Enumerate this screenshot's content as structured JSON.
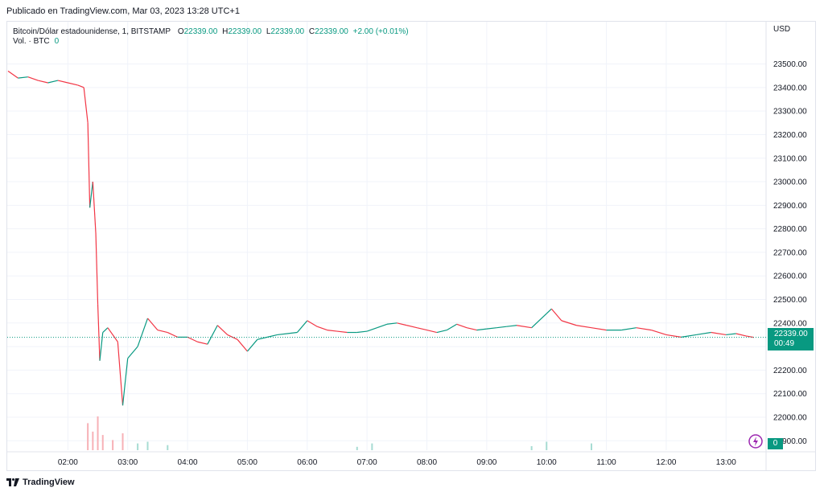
{
  "header": {
    "published": "Publicado en TradingView.com, Mar 03, 2023 13:28 UTC+1"
  },
  "legend": {
    "symbol": "Bitcoin/Dólar estadounidense, 1, BITSTAMP",
    "o_label": "O",
    "o_value": "22339.00",
    "h_label": "H",
    "h_value": "22339.00",
    "l_label": "L",
    "l_value": "22339.00",
    "c_label": "C",
    "c_value": "22339.00",
    "change": "+2.00 (+0.01%)",
    "volume_label": "Vol. · BTC",
    "volume_value": "0"
  },
  "price_axis": {
    "currency": "USD"
  },
  "last_price": {
    "price": "22339.00",
    "countdown": "00:49"
  },
  "volume_tag": "0",
  "footer": {
    "brand": "TradingView"
  },
  "colors": {
    "up": "#089981",
    "down": "#f23645",
    "grid": "#f0f3fa",
    "last_line": "#089981",
    "volume_up": "#a7dcd3",
    "volume_down": "#f7b1b6",
    "bolt": "#9c27b0"
  },
  "chart_data": {
    "type": "line",
    "title": "Bitcoin/Dólar estadounidense, 1, BITSTAMP",
    "xlabel": "",
    "ylabel": "USD",
    "x_ticks": [
      "02:00",
      "03:00",
      "04:00",
      "05:00",
      "06:00",
      "07:00",
      "08:00",
      "09:00",
      "10:00",
      "11:00",
      "12:00",
      "13:00"
    ],
    "y_ticks": [
      "21900.00",
      "22000.00",
      "22100.00",
      "22200.00",
      "22300.00",
      "22400.00",
      "22500.00",
      "22600.00",
      "22700.00",
      "22800.00",
      "22900.00",
      "23000.00",
      "23100.00",
      "23200.00",
      "23300.00",
      "23400.00",
      "23500.00"
    ],
    "xlim": [
      "01:00",
      "13:28"
    ],
    "ylim": [
      21860,
      23560
    ],
    "last_price": 22339,
    "series": [
      {
        "values": [
          {
            "t": "01:00",
            "p": 23470
          },
          {
            "t": "01:10",
            "p": 23440
          },
          {
            "t": "01:20",
            "p": 23445
          },
          {
            "t": "01:30",
            "p": 23430
          },
          {
            "t": "01:40",
            "p": 23420
          },
          {
            "t": "01:50",
            "p": 23430
          },
          {
            "t": "02:00",
            "p": 23420
          },
          {
            "t": "02:10",
            "p": 23410
          },
          {
            "t": "02:16",
            "p": 23400
          },
          {
            "t": "02:20",
            "p": 23250
          },
          {
            "t": "02:22",
            "p": 22890
          },
          {
            "t": "02:25",
            "p": 23000
          },
          {
            "t": "02:28",
            "p": 22780
          },
          {
            "t": "02:30",
            "p": 22480
          },
          {
            "t": "02:32",
            "p": 22240
          },
          {
            "t": "02:35",
            "p": 22360
          },
          {
            "t": "02:40",
            "p": 22380
          },
          {
            "t": "02:50",
            "p": 22320
          },
          {
            "t": "02:55",
            "p": 22050
          },
          {
            "t": "03:00",
            "p": 22250
          },
          {
            "t": "03:10",
            "p": 22300
          },
          {
            "t": "03:20",
            "p": 22420
          },
          {
            "t": "03:30",
            "p": 22370
          },
          {
            "t": "03:40",
            "p": 22360
          },
          {
            "t": "03:50",
            "p": 22340
          },
          {
            "t": "04:00",
            "p": 22340
          },
          {
            "t": "04:10",
            "p": 22320
          },
          {
            "t": "04:20",
            "p": 22310
          },
          {
            "t": "04:30",
            "p": 22390
          },
          {
            "t": "04:40",
            "p": 22350
          },
          {
            "t": "04:50",
            "p": 22330
          },
          {
            "t": "05:00",
            "p": 22280
          },
          {
            "t": "05:10",
            "p": 22330
          },
          {
            "t": "05:20",
            "p": 22340
          },
          {
            "t": "05:30",
            "p": 22350
          },
          {
            "t": "05:40",
            "p": 22355
          },
          {
            "t": "05:50",
            "p": 22360
          },
          {
            "t": "06:00",
            "p": 22410
          },
          {
            "t": "06:10",
            "p": 22385
          },
          {
            "t": "06:20",
            "p": 22370
          },
          {
            "t": "06:30",
            "p": 22365
          },
          {
            "t": "06:40",
            "p": 22360
          },
          {
            "t": "06:50",
            "p": 22360
          },
          {
            "t": "07:00",
            "p": 22365
          },
          {
            "t": "07:10",
            "p": 22380
          },
          {
            "t": "07:20",
            "p": 22395
          },
          {
            "t": "07:30",
            "p": 22400
          },
          {
            "t": "07:40",
            "p": 22390
          },
          {
            "t": "07:50",
            "p": 22380
          },
          {
            "t": "08:00",
            "p": 22370
          },
          {
            "t": "08:10",
            "p": 22360
          },
          {
            "t": "08:20",
            "p": 22370
          },
          {
            "t": "08:30",
            "p": 22395
          },
          {
            "t": "08:40",
            "p": 22380
          },
          {
            "t": "08:50",
            "p": 22370
          },
          {
            "t": "09:00",
            "p": 22375
          },
          {
            "t": "09:10",
            "p": 22380
          },
          {
            "t": "09:20",
            "p": 22385
          },
          {
            "t": "09:30",
            "p": 22390
          },
          {
            "t": "09:45",
            "p": 22380
          },
          {
            "t": "10:00",
            "p": 22440
          },
          {
            "t": "10:05",
            "p": 22460
          },
          {
            "t": "10:15",
            "p": 22410
          },
          {
            "t": "10:30",
            "p": 22390
          },
          {
            "t": "10:45",
            "p": 22380
          },
          {
            "t": "11:00",
            "p": 22370
          },
          {
            "t": "11:15",
            "p": 22370
          },
          {
            "t": "11:30",
            "p": 22380
          },
          {
            "t": "11:45",
            "p": 22370
          },
          {
            "t": "12:00",
            "p": 22350
          },
          {
            "t": "12:15",
            "p": 22340
          },
          {
            "t": "12:30",
            "p": 22350
          },
          {
            "t": "12:45",
            "p": 22360
          },
          {
            "t": "13:00",
            "p": 22350
          },
          {
            "t": "13:10",
            "p": 22355
          },
          {
            "t": "13:20",
            "p": 22345
          },
          {
            "t": "13:28",
            "p": 22339
          }
        ]
      }
    ],
    "volume": [
      {
        "t": "02:20",
        "v": 0.8
      },
      {
        "t": "02:25",
        "v": 0.55
      },
      {
        "t": "02:30",
        "v": 1.0
      },
      {
        "t": "02:35",
        "v": 0.45
      },
      {
        "t": "02:45",
        "v": 0.3
      },
      {
        "t": "02:55",
        "v": 0.5
      },
      {
        "t": "03:10",
        "v": 0.2
      },
      {
        "t": "03:20",
        "v": 0.25
      },
      {
        "t": "03:40",
        "v": 0.15
      },
      {
        "t": "06:50",
        "v": 0.1
      },
      {
        "t": "07:05",
        "v": 0.2
      },
      {
        "t": "09:45",
        "v": 0.12
      },
      {
        "t": "10:00",
        "v": 0.25
      },
      {
        "t": "10:45",
        "v": 0.2
      }
    ]
  }
}
